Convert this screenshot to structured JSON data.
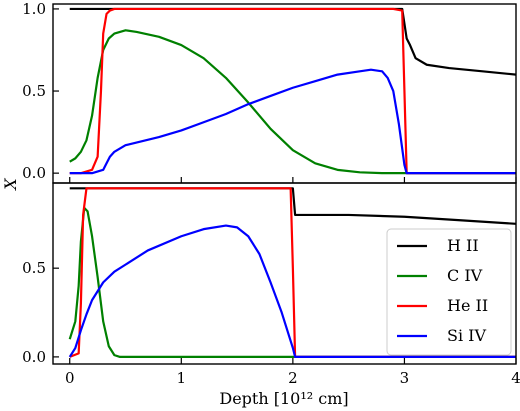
{
  "chart_data": [
    {
      "type": "line",
      "panel": "top",
      "ylabel": "X",
      "xlim": [
        -0.15,
        4.0
      ],
      "ylim": [
        -0.06,
        1.03
      ],
      "yticks": [
        0.0,
        0.5,
        1.0
      ],
      "ytick_labels": [
        "0.0",
        "0.5",
        "1.0"
      ],
      "series": [
        {
          "name": "H II",
          "color": "#000000",
          "x": [
            0.0,
            0.25,
            0.5,
            1.0,
            2.0,
            2.98,
            3.02,
            3.05,
            3.1,
            3.2,
            3.4,
            3.7,
            4.0
          ],
          "y": [
            1.0,
            1.0,
            1.0,
            1.0,
            1.0,
            1.0,
            0.82,
            0.78,
            0.7,
            0.66,
            0.64,
            0.62,
            0.6
          ]
        },
        {
          "name": "C IV",
          "color": "#008000",
          "x": [
            0.0,
            0.05,
            0.1,
            0.15,
            0.2,
            0.25,
            0.3,
            0.35,
            0.4,
            0.5,
            0.6,
            0.8,
            1.0,
            1.2,
            1.4,
            1.6,
            1.8,
            2.0,
            2.2,
            2.4,
            2.6,
            2.8,
            3.0,
            3.2,
            3.6,
            4.0
          ],
          "y": [
            0.07,
            0.09,
            0.13,
            0.2,
            0.35,
            0.58,
            0.75,
            0.82,
            0.85,
            0.87,
            0.86,
            0.83,
            0.78,
            0.7,
            0.58,
            0.43,
            0.27,
            0.14,
            0.06,
            0.02,
            0.005,
            0.0,
            0.0,
            0.0,
            0.0,
            0.0
          ]
        },
        {
          "name": "He II",
          "color": "#ff0000",
          "x": [
            0.0,
            0.1,
            0.2,
            0.25,
            0.28,
            0.3,
            0.33,
            0.36,
            0.4,
            0.5,
            1.0,
            2.0,
            2.9,
            2.98,
            3.0,
            3.02,
            3.5,
            4.0
          ],
          "y": [
            0.0,
            0.0,
            0.02,
            0.1,
            0.5,
            0.85,
            0.97,
            0.99,
            1.0,
            1.0,
            1.0,
            1.0,
            1.0,
            0.99,
            0.5,
            0.0,
            0.0,
            0.0
          ]
        },
        {
          "name": "Si IV",
          "color": "#0000ff",
          "x": [
            0.0,
            0.2,
            0.3,
            0.33,
            0.36,
            0.4,
            0.5,
            0.8,
            1.0,
            1.2,
            1.4,
            1.6,
            1.8,
            2.0,
            2.2,
            2.4,
            2.6,
            2.7,
            2.8,
            2.85,
            2.9,
            2.95,
            3.0,
            3.02,
            3.5,
            4.0
          ],
          "y": [
            0.0,
            0.0,
            0.02,
            0.06,
            0.1,
            0.13,
            0.17,
            0.22,
            0.26,
            0.31,
            0.36,
            0.42,
            0.47,
            0.52,
            0.56,
            0.6,
            0.62,
            0.63,
            0.62,
            0.58,
            0.5,
            0.3,
            0.05,
            0.0,
            0.0,
            0.0
          ]
        }
      ]
    },
    {
      "type": "line",
      "panel": "bottom",
      "xlabel": "Depth [10¹² cm]",
      "xlim": [
        -0.15,
        4.0
      ],
      "ylim": [
        -0.04,
        0.98
      ],
      "xticks": [
        0,
        1,
        2,
        3,
        4
      ],
      "xtick_labels": [
        "0",
        "1",
        "2",
        "3",
        "4"
      ],
      "yticks": [
        0.0,
        0.5
      ],
      "ytick_labels": [
        "0.0",
        "0.5"
      ],
      "legend": "lower-right",
      "series": [
        {
          "name": "H II",
          "color": "#000000",
          "x": [
            0.0,
            0.5,
            1.0,
            1.5,
            2.0,
            2.02,
            2.1,
            2.5,
            3.0,
            3.5,
            4.0
          ],
          "y": [
            0.95,
            0.95,
            0.95,
            0.95,
            0.95,
            0.8,
            0.8,
            0.8,
            0.79,
            0.77,
            0.75
          ]
        },
        {
          "name": "C IV",
          "color": "#008000",
          "x": [
            0.0,
            0.05,
            0.08,
            0.1,
            0.13,
            0.16,
            0.2,
            0.25,
            0.3,
            0.35,
            0.4,
            0.45,
            0.5,
            1.0,
            2.0,
            3.0,
            4.0
          ],
          "y": [
            0.1,
            0.2,
            0.4,
            0.65,
            0.84,
            0.82,
            0.68,
            0.45,
            0.2,
            0.06,
            0.01,
            0.0,
            0.0,
            0.0,
            0.0,
            0.0,
            0.0
          ]
        },
        {
          "name": "He II",
          "color": "#ff0000",
          "x": [
            0.0,
            0.08,
            0.1,
            0.12,
            0.15,
            0.2,
            1.0,
            1.98,
            2.0,
            2.02,
            3.0,
            4.0
          ],
          "y": [
            0.0,
            0.02,
            0.3,
            0.8,
            0.95,
            0.95,
            0.95,
            0.95,
            0.5,
            0.0,
            0.0,
            0.0
          ]
        },
        {
          "name": "Si IV",
          "color": "#0000ff",
          "x": [
            0.0,
            0.05,
            0.1,
            0.15,
            0.2,
            0.3,
            0.4,
            0.5,
            0.7,
            1.0,
            1.2,
            1.4,
            1.5,
            1.6,
            1.7,
            1.8,
            1.9,
            1.95,
            2.0,
            2.02,
            2.5,
            3.0,
            4.0
          ],
          "y": [
            0.0,
            0.05,
            0.15,
            0.24,
            0.32,
            0.42,
            0.48,
            0.52,
            0.6,
            0.68,
            0.72,
            0.74,
            0.73,
            0.68,
            0.58,
            0.42,
            0.25,
            0.15,
            0.05,
            0.0,
            0.0,
            0.0,
            0.0
          ]
        }
      ]
    }
  ]
}
